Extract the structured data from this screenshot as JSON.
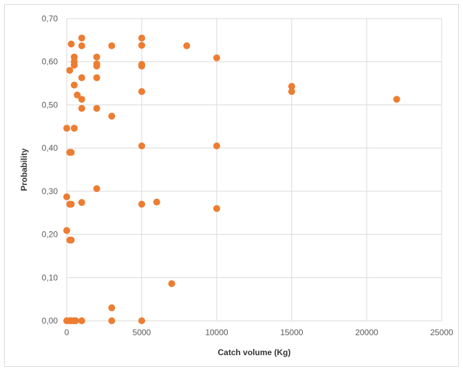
{
  "chart_data": {
    "type": "scatter",
    "title": "",
    "xlabel": "Catch volume (Kg)",
    "ylabel": "Probability",
    "xlim": [
      0,
      25000
    ],
    "ylim": [
      0,
      0.7
    ],
    "x_ticks": [
      0,
      5000,
      10000,
      15000,
      20000,
      25000
    ],
    "x_tick_labels": [
      "0",
      "5000",
      "10000",
      "15000",
      "20000",
      "25000"
    ],
    "y_ticks": [
      0,
      0.1,
      0.2,
      0.3,
      0.4,
      0.5,
      0.6,
      0.7
    ],
    "y_tick_labels": [
      "0,00",
      "0,10",
      "0,20",
      "0,30",
      "0,40",
      "0,50",
      "0,60",
      "0,70"
    ],
    "grid": "major both axes",
    "legend": "none",
    "marker_color": "#ed7d31",
    "grid_color": "#d9d9d9",
    "series": [
      {
        "points": [
          {
            "x": 1000,
            "y": 0.655
          },
          {
            "x": 5000,
            "y": 0.655
          },
          {
            "x": 300,
            "y": 0.641
          },
          {
            "x": 1000,
            "y": 0.637
          },
          {
            "x": 3000,
            "y": 0.637
          },
          {
            "x": 5000,
            "y": 0.638
          },
          {
            "x": 8000,
            "y": 0.637
          },
          {
            "x": 500,
            "y": 0.611
          },
          {
            "x": 2000,
            "y": 0.611
          },
          {
            "x": 10000,
            "y": 0.609
          },
          {
            "x": 500,
            "y": 0.6
          },
          {
            "x": 500,
            "y": 0.592
          },
          {
            "x": 2000,
            "y": 0.595
          },
          {
            "x": 2000,
            "y": 0.59
          },
          {
            "x": 5000,
            "y": 0.594
          },
          {
            "x": 5000,
            "y": 0.59
          },
          {
            "x": 200,
            "y": 0.58
          },
          {
            "x": 1000,
            "y": 0.563
          },
          {
            "x": 2000,
            "y": 0.563
          },
          {
            "x": 500,
            "y": 0.546
          },
          {
            "x": 15000,
            "y": 0.543
          },
          {
            "x": 5000,
            "y": 0.531
          },
          {
            "x": 15000,
            "y": 0.531
          },
          {
            "x": 700,
            "y": 0.523
          },
          {
            "x": 1000,
            "y": 0.513
          },
          {
            "x": 22000,
            "y": 0.513
          },
          {
            "x": 1000,
            "y": 0.492
          },
          {
            "x": 2000,
            "y": 0.492
          },
          {
            "x": 3000,
            "y": 0.474
          },
          {
            "x": 0,
            "y": 0.446
          },
          {
            "x": 500,
            "y": 0.446
          },
          {
            "x": 5000,
            "y": 0.405
          },
          {
            "x": 10000,
            "y": 0.405
          },
          {
            "x": 200,
            "y": 0.39
          },
          {
            "x": 300,
            "y": 0.39
          },
          {
            "x": 2000,
            "y": 0.306
          },
          {
            "x": 0,
            "y": 0.287
          },
          {
            "x": 200,
            "y": 0.27
          },
          {
            "x": 300,
            "y": 0.27
          },
          {
            "x": 1000,
            "y": 0.274
          },
          {
            "x": 5000,
            "y": 0.27
          },
          {
            "x": 6000,
            "y": 0.275
          },
          {
            "x": 10000,
            "y": 0.26
          },
          {
            "x": 0,
            "y": 0.209
          },
          {
            "x": 200,
            "y": 0.187
          },
          {
            "x": 300,
            "y": 0.187
          },
          {
            "x": 7000,
            "y": 0.086
          },
          {
            "x": 3000,
            "y": 0.03
          },
          {
            "x": 0,
            "y": 0.0
          },
          {
            "x": 200,
            "y": 0.0
          },
          {
            "x": 300,
            "y": 0.0
          },
          {
            "x": 500,
            "y": 0.0
          },
          {
            "x": 600,
            "y": 0.0
          },
          {
            "x": 1000,
            "y": 0.0
          },
          {
            "x": 3000,
            "y": 0.0
          },
          {
            "x": 5000,
            "y": 0.0
          }
        ]
      }
    ]
  }
}
